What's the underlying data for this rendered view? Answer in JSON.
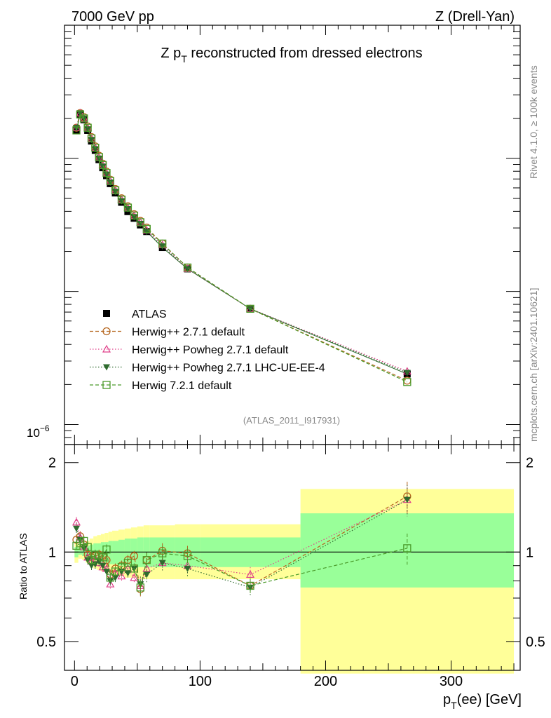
{
  "header": {
    "energy_label": "7000 GeV pp",
    "process_label": "Z (Drell-Yan)",
    "title_prefix": "Z p",
    "title_sub": "T",
    "title_suffix": " reconstructed from dressed electrons",
    "analysis_id": "(ATLAS_2011_I917931)",
    "side_rivet": "Rivet 4.1.0, ≥ 100k events",
    "side_site": "mcplots.cern.ch [arXiv:2401.10621]"
  },
  "axes": {
    "x_main": "p",
    "x_sub": "T",
    "x_suffix": "(ee) [GeV]",
    "ratio_ylabel": "Ratio to ATLAS",
    "top_y_tick_base": "10",
    "top_y_tick_exp": "−6"
  },
  "legend": {
    "items": [
      {
        "label": "ATLAS",
        "color": "#000000",
        "marker": "square-filled",
        "dash": ""
      },
      {
        "label": "Herwig++ 2.7.1 default",
        "color": "#b5651d",
        "marker": "circle-open",
        "dash": "5,3"
      },
      {
        "label": "Herwig++ Powheg 2.7.1 default",
        "color": "#e0408a",
        "marker": "triangle-open",
        "dash": "1.5,2.5"
      },
      {
        "label": "Herwig++ Powheg 2.7.1 LHC-UE-EE-4",
        "color": "#2f6b2f",
        "marker": "triangle-down-filled",
        "dash": "1.5,2.5"
      },
      {
        "label": "Herwig 7.2.1 default",
        "color": "#4a9a2a",
        "marker": "square-open",
        "dash": "5,3"
      }
    ]
  },
  "chart_data": [
    {
      "type": "line",
      "title": "Z pT reconstructed from dressed electrons",
      "xlabel": "pT(ee) [GeV]",
      "ylabel": "",
      "xlim": [
        -8,
        355
      ],
      "ylim_log10": [
        -6.15,
        -3.0
      ],
      "yscale": "log",
      "x": [
        1.5,
        4.5,
        7.5,
        10.5,
        13.5,
        16.5,
        19.5,
        22.5,
        25.5,
        28.5,
        32.5,
        37.5,
        42.5,
        47.5,
        52.5,
        57.5,
        70,
        90,
        140,
        265
      ],
      "series": [
        {
          "name": "ATLAS",
          "log10_values": [
            -3.79,
            -3.67,
            -3.71,
            -3.79,
            -3.87,
            -3.94,
            -4.01,
            -4.07,
            -4.13,
            -4.19,
            -4.26,
            -4.33,
            -4.4,
            -4.45,
            -4.5,
            -4.55,
            -4.67,
            -4.83,
            -5.13,
            -5.62
          ]
        },
        {
          "name": "Herwig++ 2.7.1 default",
          "log10_values": [
            -3.77,
            -3.66,
            -3.69,
            -3.76,
            -3.84,
            -3.91,
            -3.98,
            -4.04,
            -4.1,
            -4.16,
            -4.23,
            -4.3,
            -4.36,
            -4.42,
            -4.47,
            -4.52,
            -4.64,
            -4.82,
            -5.13,
            -5.67
          ]
        },
        {
          "name": "Herwig++ Powheg 2.7.1 default",
          "log10_values": [
            -3.77,
            -3.66,
            -3.7,
            -3.77,
            -3.85,
            -3.92,
            -3.99,
            -4.05,
            -4.11,
            -4.17,
            -4.24,
            -4.31,
            -4.37,
            -4.43,
            -4.48,
            -4.54,
            -4.65,
            -4.83,
            -5.13,
            -5.6
          ]
        },
        {
          "name": "Herwig++ Powheg 2.7.1 LHC-UE-EE-4",
          "log10_values": [
            -3.77,
            -3.66,
            -3.7,
            -3.78,
            -3.86,
            -3.93,
            -4.0,
            -4.06,
            -4.12,
            -4.18,
            -4.25,
            -4.32,
            -4.38,
            -4.44,
            -4.49,
            -4.55,
            -4.66,
            -4.83,
            -5.13,
            -5.61
          ]
        },
        {
          "name": "Herwig 7.2.1 default",
          "log10_values": [
            -3.79,
            -3.67,
            -3.7,
            -3.77,
            -3.85,
            -3.92,
            -3.99,
            -4.05,
            -4.11,
            -4.17,
            -4.24,
            -4.31,
            -4.37,
            -4.43,
            -4.48,
            -4.53,
            -4.64,
            -4.82,
            -5.13,
            -5.68
          ]
        }
      ]
    },
    {
      "type": "line",
      "title": "",
      "xlabel": "pT(ee) [GeV]",
      "ylabel": "Ratio to ATLAS",
      "xlim": [
        -8,
        355
      ],
      "ylim": [
        0.4,
        2.3
      ],
      "yscale": "log",
      "yticks": [
        0.5,
        1,
        2
      ],
      "ytick_labels": [
        "0.5",
        "1",
        "2"
      ],
      "xticks": [
        0,
        100,
        200,
        300
      ],
      "xtick_labels": [
        "0",
        "100",
        "200",
        "300"
      ],
      "reference_line": 1,
      "x": [
        1.5,
        4.5,
        7.5,
        10.5,
        13.5,
        16.5,
        19.5,
        22.5,
        25.5,
        28.5,
        32.5,
        37.5,
        42.5,
        47.5,
        52.5,
        57.5,
        70,
        90,
        140,
        265
      ],
      "bands": {
        "bin_edges": [
          0,
          3,
          6,
          9,
          12,
          15,
          18,
          21,
          24,
          27,
          30,
          35,
          40,
          45,
          50,
          55,
          60,
          80,
          100,
          180,
          350
        ],
        "inner_low": [
          0.96,
          0.98,
          0.97,
          0.96,
          0.95,
          0.94,
          0.93,
          0.92,
          0.92,
          0.91,
          0.91,
          0.9,
          0.9,
          0.89,
          0.89,
          0.89,
          0.89,
          0.89,
          0.89,
          0.76
        ],
        "inner_high": [
          1.04,
          1.03,
          1.04,
          1.05,
          1.06,
          1.07,
          1.07,
          1.08,
          1.08,
          1.09,
          1.09,
          1.1,
          1.11,
          1.11,
          1.12,
          1.12,
          1.12,
          1.12,
          1.12,
          1.35
        ],
        "outer_low": [
          0.92,
          0.95,
          0.94,
          0.92,
          0.9,
          0.88,
          0.87,
          0.86,
          0.86,
          0.85,
          0.84,
          0.83,
          0.82,
          0.82,
          0.81,
          0.81,
          0.81,
          0.81,
          0.81,
          0.39
        ],
        "outer_high": [
          1.08,
          1.06,
          1.07,
          1.09,
          1.11,
          1.13,
          1.14,
          1.15,
          1.16,
          1.17,
          1.18,
          1.19,
          1.2,
          1.21,
          1.22,
          1.23,
          1.23,
          1.24,
          1.24,
          1.63
        ],
        "inner_color": "#99ff99",
        "outer_color": "#ffff99"
      },
      "series": [
        {
          "name": "Herwig++ 2.7.1 default",
          "values": [
            1.1,
            1.13,
            1.06,
            0.98,
            0.96,
            0.97,
            0.98,
            0.97,
            0.94,
            0.84,
            0.88,
            0.9,
            0.94,
            0.97,
            0.75,
            0.94,
            1.01,
            0.99,
            0.77,
            1.54
          ]
        },
        {
          "name": "Herwig++ Powheg 2.7.1 default",
          "values": [
            1.26,
            1.12,
            1.04,
            0.96,
            0.93,
            0.95,
            0.92,
            0.89,
            0.88,
            0.78,
            0.85,
            0.83,
            0.88,
            0.82,
            0.77,
            0.88,
            0.92,
            0.9,
            0.84,
            1.5
          ]
        },
        {
          "name": "Herwig++ Powheg 2.7.1 LHC-UE-EE-4",
          "values": [
            1.2,
            1.1,
            1.03,
            0.94,
            0.9,
            0.91,
            0.93,
            0.9,
            0.86,
            0.8,
            0.82,
            0.86,
            0.85,
            0.88,
            0.78,
            0.84,
            0.92,
            0.88,
            0.76,
            1.5
          ]
        },
        {
          "name": "Herwig 7.2.1 default",
          "values": [
            1.05,
            1.07,
            1.09,
            1.04,
            0.94,
            0.98,
            0.97,
            0.96,
            1.02,
            0.82,
            0.86,
            0.89,
            0.92,
            0.88,
            0.76,
            0.94,
            0.99,
            0.97,
            0.77,
            1.03
          ]
        }
      ]
    }
  ]
}
